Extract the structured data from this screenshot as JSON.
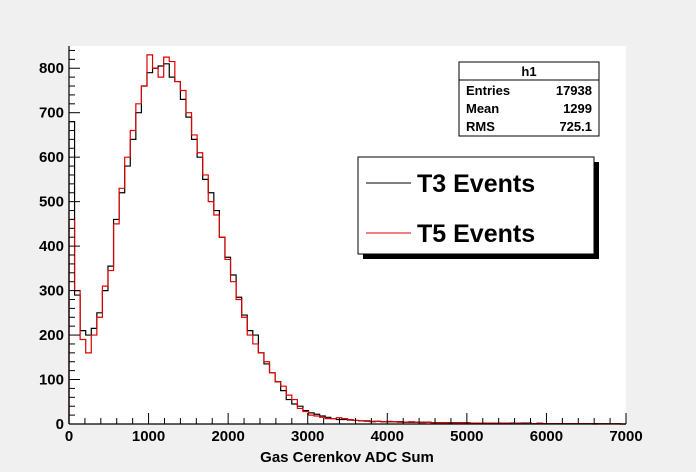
{
  "chart_data": {
    "type": "histogram",
    "xlabel": "Gas Cerenkov ADC Sum",
    "ylabel": "",
    "xlim": [
      0,
      7000
    ],
    "ylim": [
      0,
      850
    ],
    "x_ticks": [
      0,
      1000,
      2000,
      3000,
      4000,
      5000,
      6000,
      7000
    ],
    "y_ticks": [
      0,
      100,
      200,
      300,
      400,
      500,
      600,
      700,
      800
    ],
    "grid": false,
    "bin_width": 70,
    "colors": {
      "plot_background": "#ffffff",
      "frame_background": "#f0f0f0",
      "axis": "#000000"
    },
    "stats_box": {
      "title": "h1",
      "rows": [
        {
          "label": "Entries",
          "value": "17938"
        },
        {
          "label": "Mean",
          "value": "1299"
        },
        {
          "label": "RMS",
          "value": "725.1"
        }
      ]
    },
    "legend": {
      "position": "top-right",
      "entries": [
        {
          "label": "T3 Events",
          "color": "#000000"
        },
        {
          "label": "T5 Events",
          "color": "#dd0000"
        }
      ]
    },
    "series": [
      {
        "name": "T3 Events",
        "color": "#000000",
        "x": [
          0,
          70,
          140,
          210,
          280,
          350,
          420,
          490,
          560,
          630,
          700,
          770,
          840,
          910,
          980,
          1050,
          1120,
          1190,
          1260,
          1330,
          1400,
          1470,
          1540,
          1610,
          1680,
          1750,
          1820,
          1890,
          1960,
          2030,
          2100,
          2170,
          2240,
          2310,
          2380,
          2450,
          2520,
          2590,
          2660,
          2730,
          2800,
          2870,
          2940,
          3010,
          3080,
          3150,
          3220,
          3290,
          3360,
          3430,
          3500,
          3570,
          3640,
          3710,
          3780,
          3850,
          3920,
          3990,
          4060,
          4130,
          4200,
          4270,
          4340,
          4410,
          4480,
          4550,
          4620,
          4690,
          4760,
          4830,
          4900,
          4970,
          5040,
          5110,
          5180,
          5250,
          5320,
          5390,
          5460,
          5530,
          5600,
          5670,
          5740,
          5810,
          5880,
          5950,
          6020,
          6090,
          6160,
          6230,
          6300,
          6370,
          6440,
          6510,
          6580,
          6650,
          6720,
          6790,
          6860,
          6930
        ],
        "values": [
          680,
          290,
          210,
          200,
          215,
          250,
          300,
          355,
          460,
          520,
          580,
          640,
          700,
          760,
          790,
          800,
          805,
          810,
          780,
          770,
          730,
          690,
          640,
          600,
          550,
          520,
          480,
          420,
          375,
          335,
          285,
          245,
          210,
          200,
          160,
          135,
          115,
          95,
          75,
          55,
          45,
          40,
          30,
          25,
          22,
          18,
          15,
          12,
          10,
          10,
          9,
          8,
          7,
          7,
          6,
          6,
          5,
          5,
          5,
          5,
          4,
          4,
          4,
          4,
          4,
          3,
          3,
          3,
          3,
          3,
          3,
          3,
          2,
          2,
          2,
          2,
          2,
          2,
          2,
          2,
          2,
          2,
          2,
          1,
          1,
          1,
          1,
          1,
          1,
          1,
          1,
          1,
          1,
          1,
          1,
          1,
          1,
          1,
          1,
          0
        ]
      },
      {
        "name": "T5 Events",
        "color": "#dd0000",
        "x": [
          0,
          70,
          140,
          210,
          280,
          350,
          420,
          490,
          560,
          630,
          700,
          770,
          840,
          910,
          980,
          1050,
          1120,
          1190,
          1260,
          1330,
          1400,
          1470,
          1540,
          1610,
          1680,
          1750,
          1820,
          1890,
          1960,
          2030,
          2100,
          2170,
          2240,
          2310,
          2380,
          2450,
          2520,
          2590,
          2660,
          2730,
          2800,
          2870,
          2940,
          3010,
          3080,
          3150,
          3220,
          3290,
          3360,
          3430,
          3500,
          3570,
          3640,
          3710,
          3780,
          3850,
          3920,
          3990,
          4060,
          4130,
          4200,
          4270,
          4340,
          4410,
          4480,
          4550,
          4620,
          4690,
          4760,
          4830,
          4900,
          4970,
          5040,
          5110,
          5180,
          5250,
          5320,
          5390,
          5460,
          5530,
          5600,
          5670,
          5740,
          5810,
          5880,
          5950,
          6020,
          6090,
          6160,
          6230,
          6300,
          6370,
          6440,
          6510,
          6580,
          6650,
          6720,
          6790,
          6860,
          6930
        ],
        "values": [
          460,
          300,
          190,
          160,
          200,
          240,
          310,
          345,
          450,
          530,
          600,
          660,
          720,
          760,
          830,
          800,
          780,
          825,
          815,
          770,
          750,
          700,
          650,
          610,
          560,
          500,
          470,
          420,
          370,
          320,
          280,
          240,
          200,
          180,
          160,
          140,
          115,
          95,
          85,
          65,
          55,
          35,
          28,
          20,
          18,
          15,
          12,
          12,
          14,
          12,
          10,
          8,
          7,
          6,
          5,
          6,
          5,
          6,
          5,
          4,
          4,
          5,
          4,
          3,
          4,
          3,
          3,
          3,
          2,
          3,
          3,
          2,
          2,
          2,
          2,
          2,
          2,
          2,
          2,
          1,
          2,
          1,
          1,
          1,
          2,
          1,
          1,
          1,
          1,
          1,
          1,
          1,
          1,
          1,
          0,
          1,
          1,
          1,
          1,
          0
        ]
      }
    ]
  }
}
